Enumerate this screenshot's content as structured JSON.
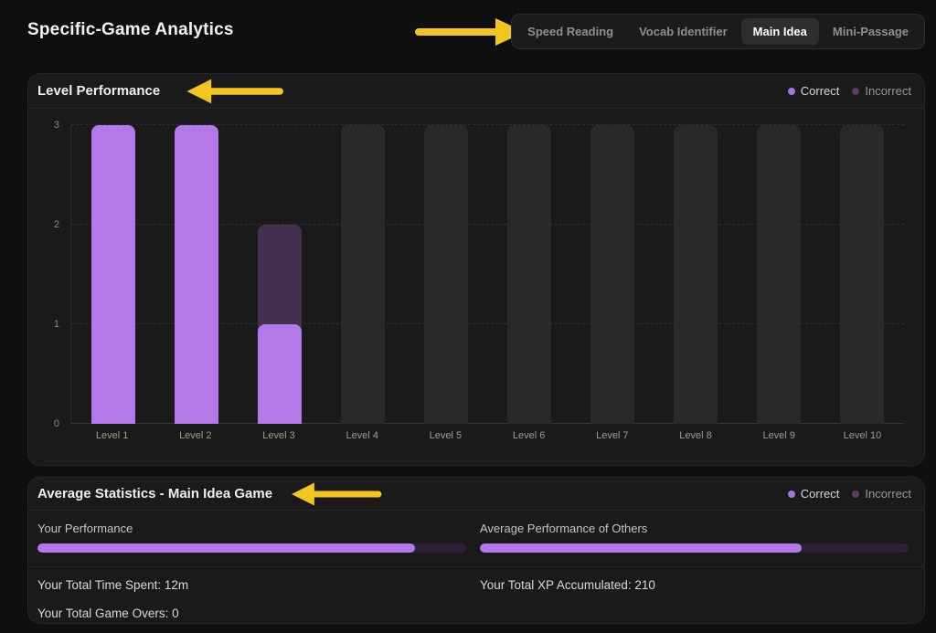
{
  "header": {
    "title": "Specific-Game Analytics",
    "tabs": [
      {
        "label": "Speed Reading",
        "active": false
      },
      {
        "label": "Vocab Identifier",
        "active": false
      },
      {
        "label": "Main Idea",
        "active": true
      },
      {
        "label": "Mini-Passage",
        "active": false
      }
    ]
  },
  "legend": {
    "correct": "Correct",
    "incorrect": "Incorrect"
  },
  "colors": {
    "correct": "#b478e8",
    "incorrect": "#443051",
    "placeholder_bar": "#292929",
    "progress_track": "#2b2235",
    "annotation_arrow": "#f3c520",
    "panel_background": "#1a1a1a",
    "page_background": "#0f0f0f"
  },
  "level_performance": {
    "title": "Level Performance"
  },
  "chart_data": {
    "type": "bar",
    "stacked": true,
    "title": "Level Performance",
    "categories": [
      "Level 1",
      "Level 2",
      "Level 3",
      "Level 4",
      "Level 5",
      "Level 6",
      "Level 7",
      "Level 8",
      "Level 9",
      "Level 10"
    ],
    "series": [
      {
        "name": "Correct",
        "color": "#b478e8",
        "values": [
          3,
          3,
          1,
          0,
          0,
          0,
          0,
          0,
          0,
          0
        ]
      },
      {
        "name": "Incorrect",
        "color": "#443051",
        "values": [
          0,
          0,
          1,
          0,
          0,
          0,
          0,
          0,
          0,
          0
        ]
      }
    ],
    "no_data": [
      false,
      false,
      false,
      true,
      true,
      true,
      true,
      true,
      true,
      true
    ],
    "placeholder_bar_value": 3,
    "xlabel": "",
    "ylabel": "",
    "ylim": [
      0,
      3
    ],
    "yticks": [
      0,
      1,
      2,
      3
    ],
    "grid": "horizontal-dashed",
    "legend_position": "top-right",
    "legend_entries": [
      "Correct",
      "Incorrect"
    ]
  },
  "average_stats": {
    "title": "Average Statistics - Main Idea Game",
    "your_performance": {
      "label": "Your Performance",
      "percent": 88
    },
    "others_performance": {
      "label": "Average Performance of Others",
      "percent": 75
    },
    "stats": [
      {
        "label": "Your Total Time Spent:",
        "value": "12m"
      },
      {
        "label": "Your Total XP Accumulated:",
        "value": "210"
      },
      {
        "label": "Your Total Game Overs:",
        "value": "0"
      }
    ]
  }
}
